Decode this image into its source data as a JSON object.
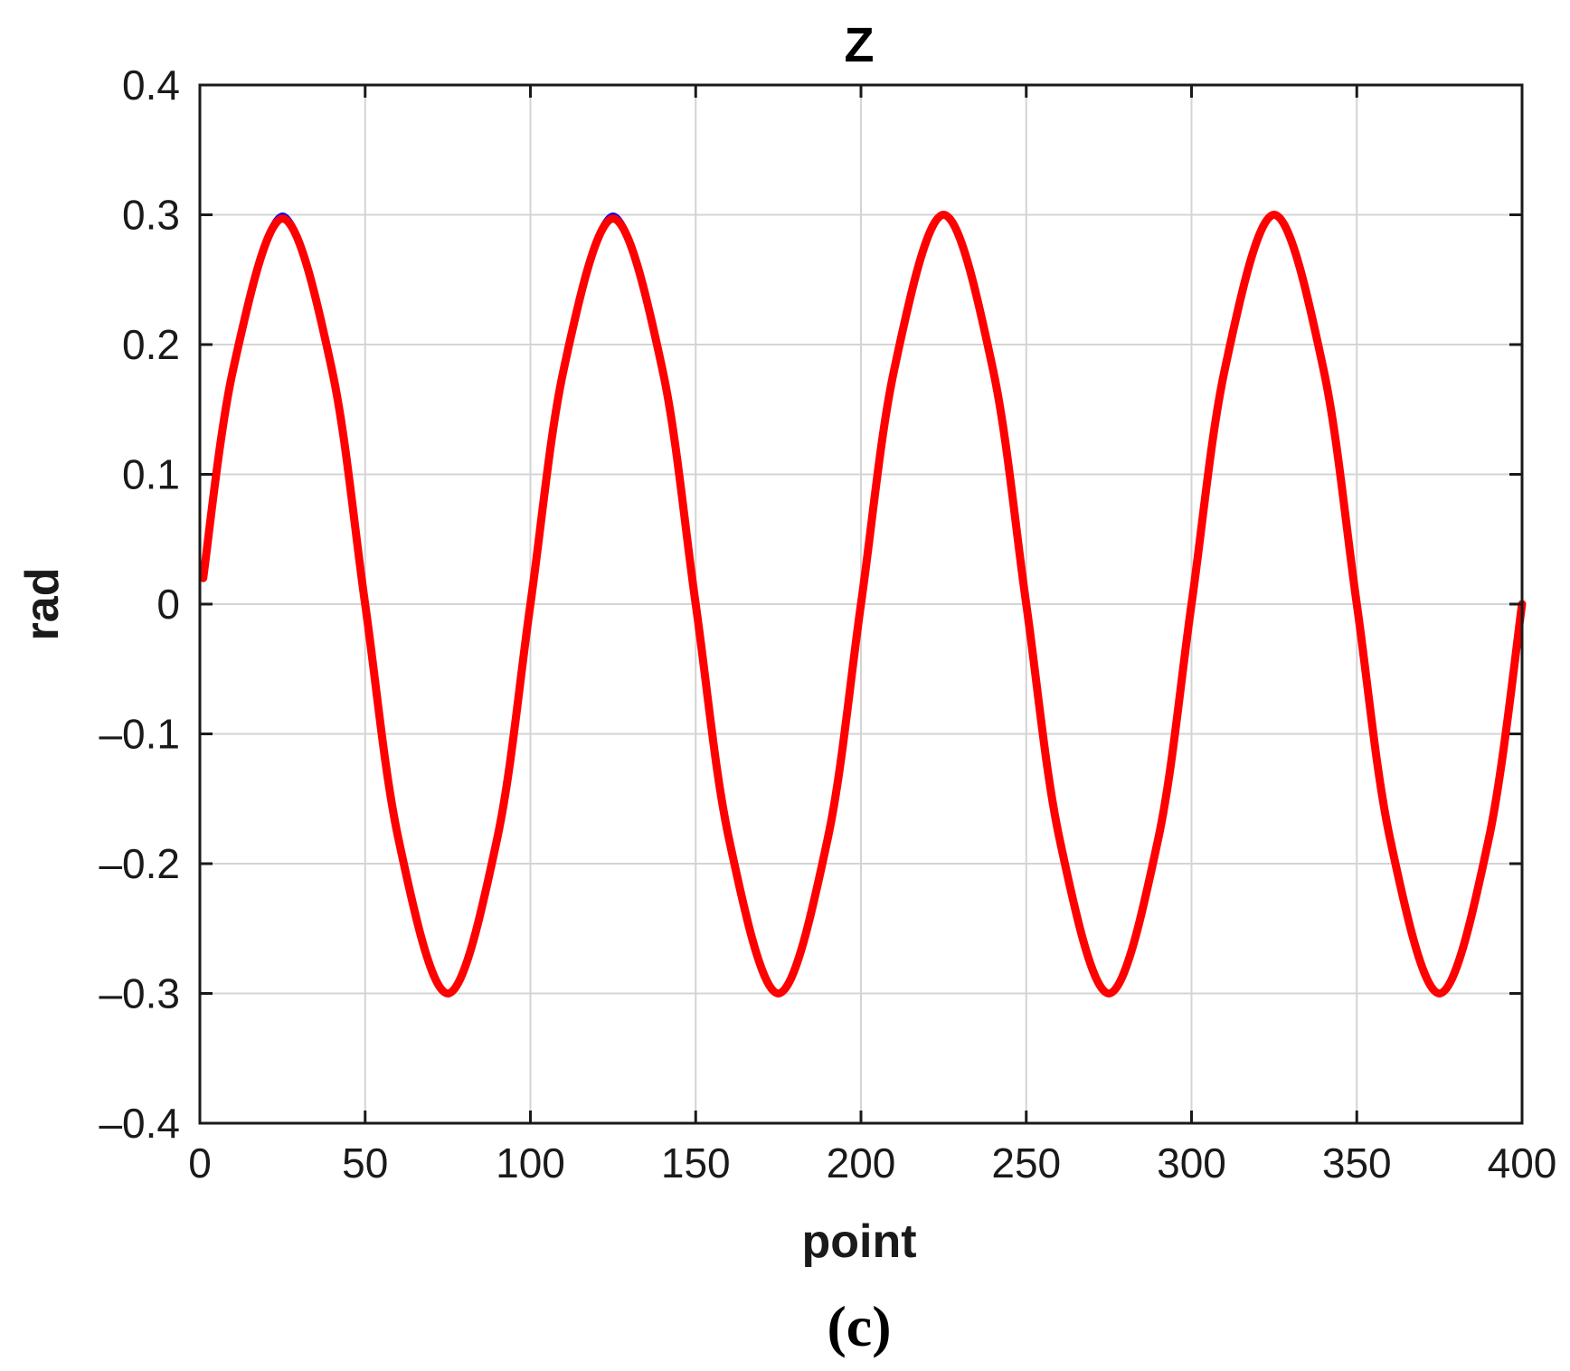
{
  "chart_data": {
    "type": "line",
    "title": "Z",
    "xlabel": "point",
    "ylabel": "rad",
    "panel_label": "(c)",
    "xlim": [
      0,
      400
    ],
    "ylim": [
      -0.4,
      0.4
    ],
    "x_ticks": [
      0,
      50,
      100,
      150,
      200,
      250,
      300,
      350,
      400
    ],
    "x_tick_labels": [
      "0",
      "50",
      "100",
      "150",
      "200",
      "250",
      "300",
      "350",
      "400"
    ],
    "y_ticks": [
      0.4,
      0.3,
      0.2,
      0.1,
      0,
      -0.1,
      -0.2,
      -0.3,
      -0.4
    ],
    "y_tick_labels": [
      "0.4",
      "0.3",
      "0.2",
      "0.1",
      "0",
      "–0.1",
      "–0.2",
      "–0.3",
      "–0.4"
    ],
    "grid": true,
    "series": [
      {
        "color": "#0000ff",
        "x": [
          1,
          10,
          25,
          40,
          50,
          60,
          75,
          90,
          100,
          110,
          125,
          140,
          150,
          160,
          175,
          190,
          200,
          210,
          225,
          240,
          250,
          260,
          275,
          290,
          300,
          310,
          325,
          340,
          350,
          360,
          375,
          390,
          400
        ],
        "y": [
          0.02,
          0.18,
          0.3,
          0.18,
          0.0,
          -0.18,
          -0.3,
          -0.18,
          0.0,
          0.18,
          0.3,
          0.18,
          0.0,
          -0.18,
          -0.3,
          -0.18,
          0.0,
          0.18,
          0.3,
          0.18,
          0.0,
          -0.18,
          -0.3,
          -0.18,
          0.0,
          0.18,
          0.3,
          0.18,
          0.0,
          -0.18,
          -0.3,
          -0.18,
          0.0
        ]
      },
      {
        "color": "#ff0000",
        "x": [
          1,
          10,
          25,
          40,
          50,
          60,
          75,
          90,
          100,
          110,
          125,
          140,
          150,
          160,
          175,
          190,
          200,
          210,
          225,
          240,
          250,
          260,
          275,
          290,
          300,
          310,
          325,
          340,
          350,
          360,
          375,
          390,
          400
        ],
        "y": [
          0.02,
          0.18,
          0.297,
          0.18,
          0.0,
          -0.18,
          -0.3,
          -0.18,
          0.0,
          0.18,
          0.297,
          0.18,
          0.0,
          -0.18,
          -0.3,
          -0.18,
          0.0,
          0.18,
          0.3,
          0.18,
          0.0,
          -0.18,
          -0.3,
          -0.18,
          0.0,
          0.18,
          0.3,
          0.18,
          0.0,
          -0.18,
          -0.3,
          -0.18,
          0.0
        ]
      }
    ]
  }
}
